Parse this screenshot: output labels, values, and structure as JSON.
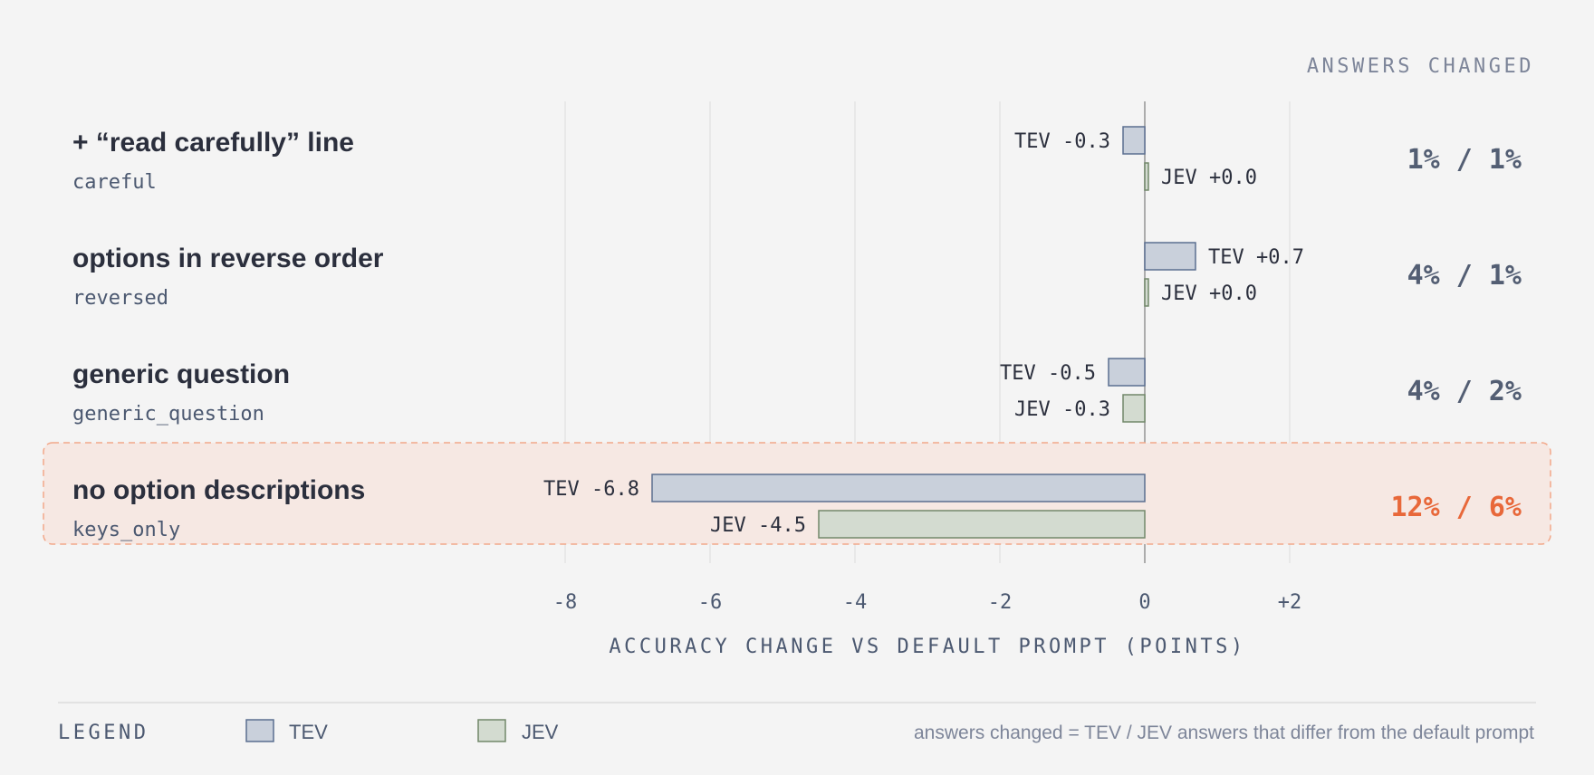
{
  "header": {
    "answers_changed_label": "ANSWERS CHANGED"
  },
  "chart_data": {
    "type": "bar",
    "orientation": "horizontal",
    "xlabel": "ACCURACY CHANGE VS DEFAULT PROMPT (POINTS)",
    "xlim": [
      -8,
      2
    ],
    "xticks": [
      -8,
      -6,
      -4,
      -2,
      0,
      2
    ],
    "xtick_labels": [
      "-8",
      "-6",
      "-4",
      "-2",
      "0",
      "+2"
    ],
    "grid": "vertical",
    "categories": [
      {
        "title": "+ “read carefully” line",
        "code": "careful",
        "answers_changed": "1% / 1%",
        "highlight": false
      },
      {
        "title": "options in reverse order",
        "code": "reversed",
        "answers_changed": "4% / 1%",
        "highlight": false
      },
      {
        "title": "generic question",
        "code": "generic_question",
        "answers_changed": "4% / 2%",
        "highlight": false
      },
      {
        "title": "no option descriptions",
        "code": "keys_only",
        "answers_changed": "12% / 6%",
        "highlight": true
      }
    ],
    "series": [
      {
        "name": "TEV",
        "values": [
          -0.3,
          0.7,
          -0.5,
          -6.8
        ],
        "labels": [
          "TEV -0.3",
          "TEV +0.7",
          "TEV -0.5",
          "TEV -6.8"
        ],
        "fill": "#c9d0db",
        "stroke": "#5b6f90"
      },
      {
        "name": "JEV",
        "values": [
          0.0,
          0.0,
          -0.3,
          -4.5
        ],
        "labels": [
          "JEV +0.0",
          "JEV +0.0",
          "JEV -0.3",
          "JEV -4.5"
        ],
        "fill": "#d3dbd0",
        "stroke": "#72886a"
      }
    ]
  },
  "legend": {
    "title": "LEGEND",
    "items": [
      {
        "name": "TEV",
        "fill": "#c9d0db",
        "stroke": "#5b6f90"
      },
      {
        "name": "JEV",
        "fill": "#d3dbd0",
        "stroke": "#72886a"
      }
    ],
    "note": "answers changed = TEV / JEV answers that differ from the default prompt"
  },
  "colors": {
    "title_text": "#2b2f3d",
    "code_text": "#4b5870",
    "muted_text": "#7d8599",
    "axis_text": "#4b5870",
    "changed_text": "#535e73",
    "highlight_text": "#e8683a",
    "highlight_fill": "#f6e8e3",
    "highlight_stroke": "#f2a88a",
    "grid": "#e0e0e0",
    "zero_line": "#9a9a9a"
  }
}
